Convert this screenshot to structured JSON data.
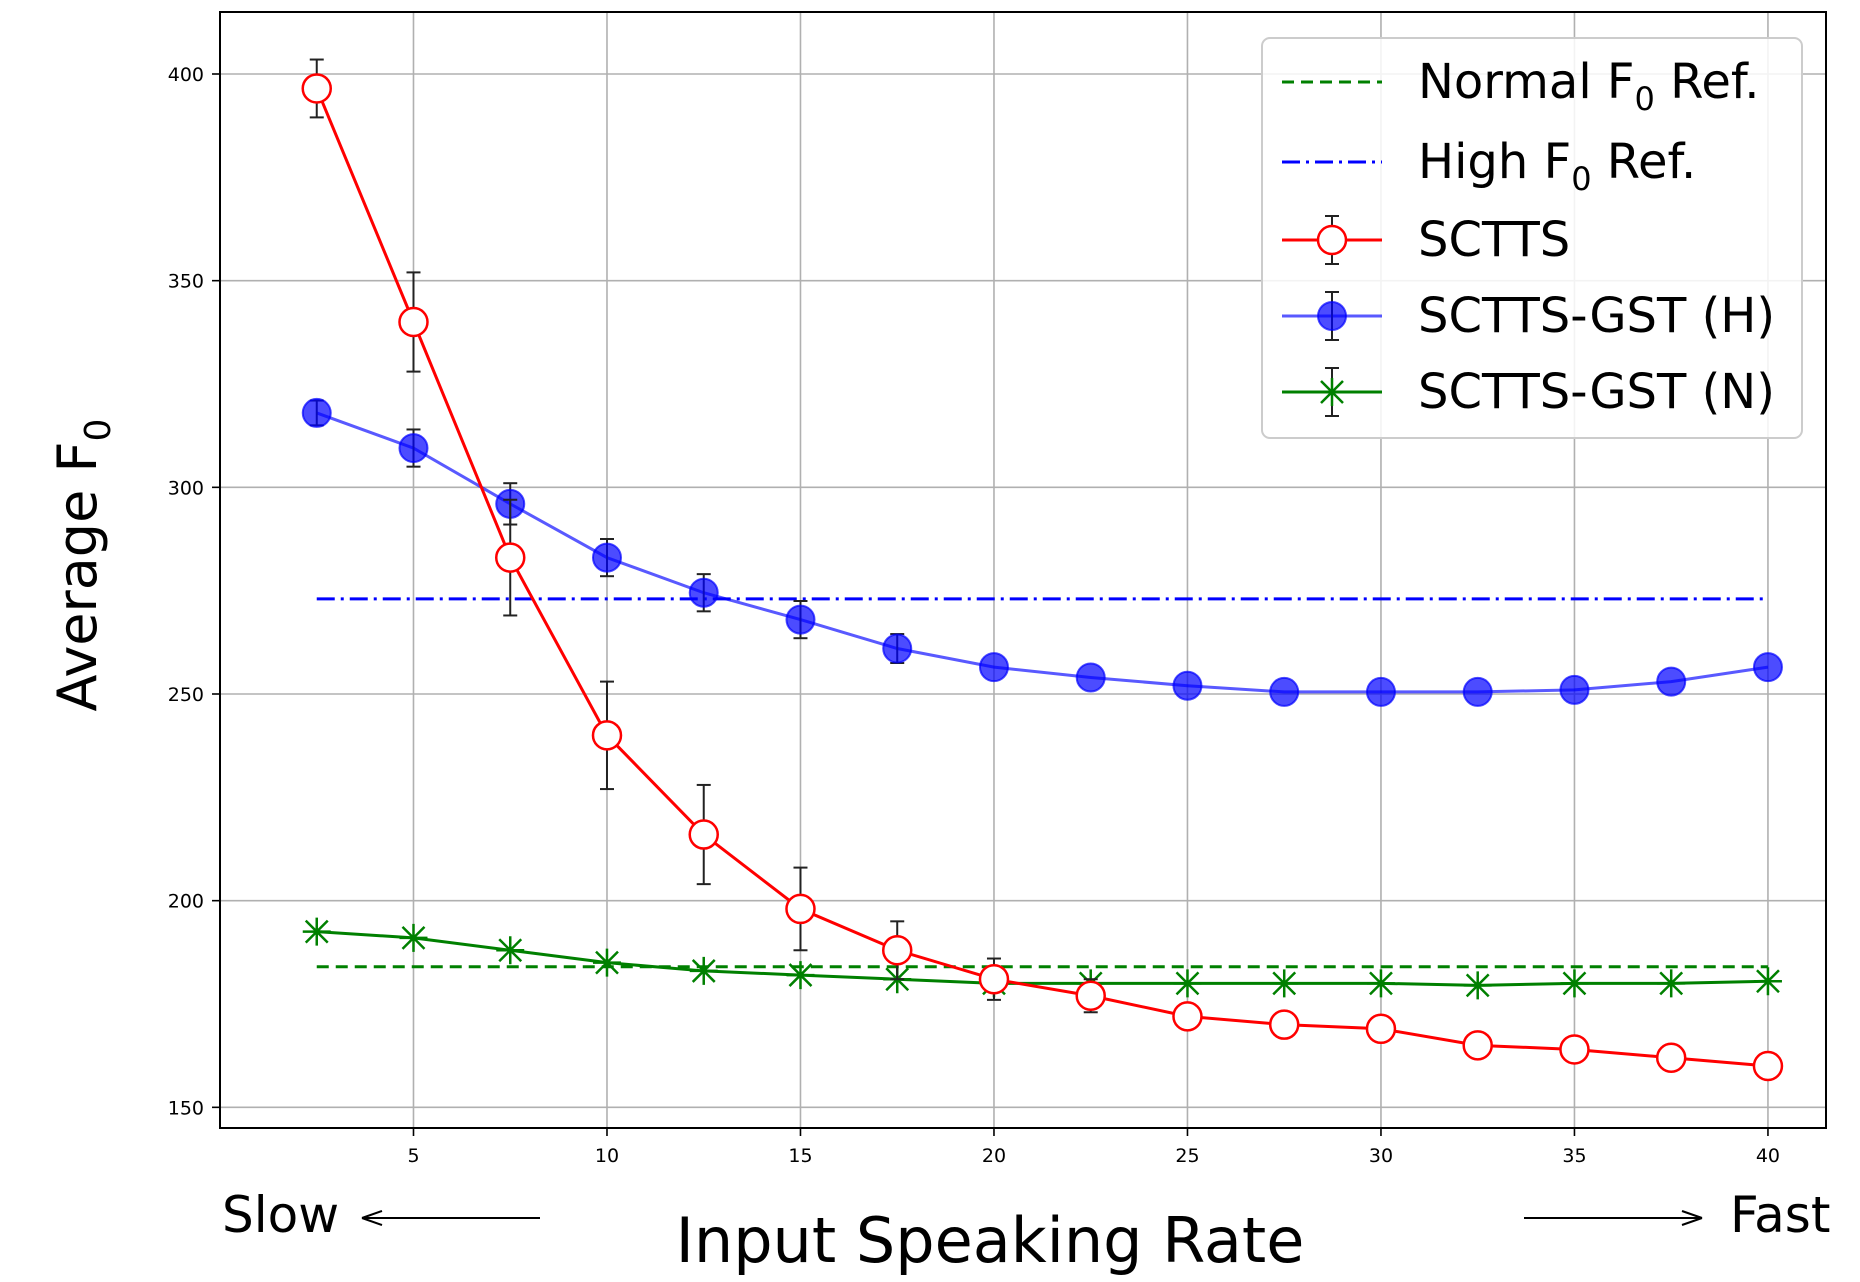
{
  "chart_data": {
    "type": "line",
    "ylabel_main": "Average F",
    "ylabel_sub": "0",
    "xlabel": "Input Speaking Rate",
    "x_left_annotation": "Slow",
    "x_right_annotation": "Fast",
    "xlim": [
      0,
      41.5
    ],
    "ylim": [
      145,
      415
    ],
    "xticks": [
      5,
      10,
      15,
      20,
      25,
      30,
      35,
      40
    ],
    "yticks": [
      150,
      200,
      250,
      300,
      350,
      400
    ],
    "grid": true,
    "legend_position": "top-right",
    "x": [
      2.5,
      5,
      7.5,
      10,
      12.5,
      15,
      17.5,
      20,
      22.5,
      25,
      27.5,
      30,
      32.5,
      35,
      37.5,
      40
    ],
    "reference_lines": [
      {
        "name_main": "Normal F",
        "name_sub": "0",
        "name_tail": " Ref.",
        "value": 184,
        "color": "#008000",
        "style": "dashed",
        "x_range": [
          2.5,
          40
        ]
      },
      {
        "name_main": "High F",
        "name_sub": "0",
        "name_tail": " Ref.",
        "value": 273,
        "color": "#0000ff",
        "style": "dashdot",
        "x_range": [
          2.5,
          40
        ]
      }
    ],
    "series": [
      {
        "name": "SCTTS",
        "color": "#ff0000",
        "marker": "open-circle",
        "values": [
          396.5,
          340,
          283,
          240,
          216,
          198,
          188,
          181,
          177,
          172,
          170,
          169,
          165,
          164,
          162,
          160
        ],
        "errors": [
          7,
          12,
          14,
          13,
          12,
          10,
          7,
          5,
          4,
          0,
          0,
          0,
          0,
          0,
          0,
          0
        ]
      },
      {
        "name": "SCTTS-GST (H)",
        "color": "#0000ff",
        "marker": "filled-circle",
        "values": [
          318,
          309.5,
          296,
          283,
          274.5,
          268,
          261,
          256.5,
          254,
          252,
          250.5,
          250.5,
          250.5,
          251,
          253,
          256.5
        ],
        "errors": [
          3,
          4.5,
          5,
          4.5,
          4.5,
          4.5,
          3.5,
          0,
          0,
          0,
          0,
          0,
          0,
          0,
          0,
          0
        ]
      },
      {
        "name": "SCTTS-GST (N)",
        "color": "#008000",
        "marker": "x-star",
        "values": [
          192.5,
          191,
          188,
          185,
          183,
          182,
          181,
          180,
          180,
          180,
          180,
          180,
          179.5,
          180,
          180,
          180.5
        ],
        "errors": [
          0,
          0,
          0,
          0,
          0,
          0,
          0,
          0,
          0,
          0,
          0,
          0,
          0,
          0,
          0,
          0
        ]
      }
    ]
  }
}
